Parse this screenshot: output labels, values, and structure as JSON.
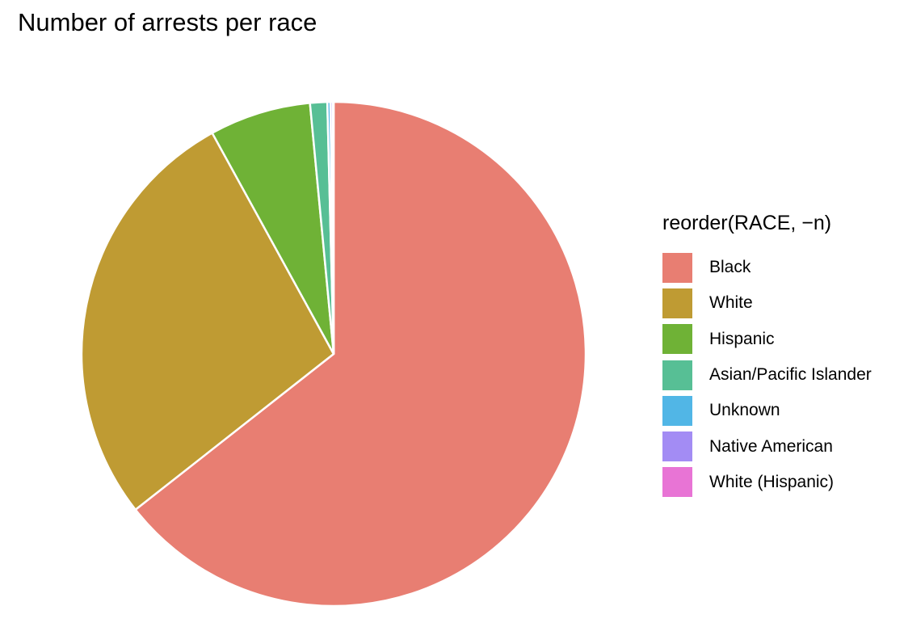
{
  "chart_data": {
    "type": "pie",
    "title": "Number of arrests per race",
    "legend": {
      "title": "reorder(RACE, −n)",
      "position": "right"
    },
    "slices": [
      {
        "label": "Black",
        "value": 64.4,
        "color": "#E87E72"
      },
      {
        "label": "White",
        "value": 27.6,
        "color": "#BF9B33"
      },
      {
        "label": "Hispanic",
        "value": 6.5,
        "color": "#6FB236"
      },
      {
        "label": "Asian/Pacific Islander",
        "value": 1.1,
        "color": "#57BF95"
      },
      {
        "label": "Unknown",
        "value": 0.2,
        "color": "#51B6E6"
      },
      {
        "label": "Native American",
        "value": 0.15,
        "color": "#A38CF4"
      },
      {
        "label": "White (Hispanic)",
        "value": 0.05,
        "color": "#E874D5"
      }
    ]
  }
}
